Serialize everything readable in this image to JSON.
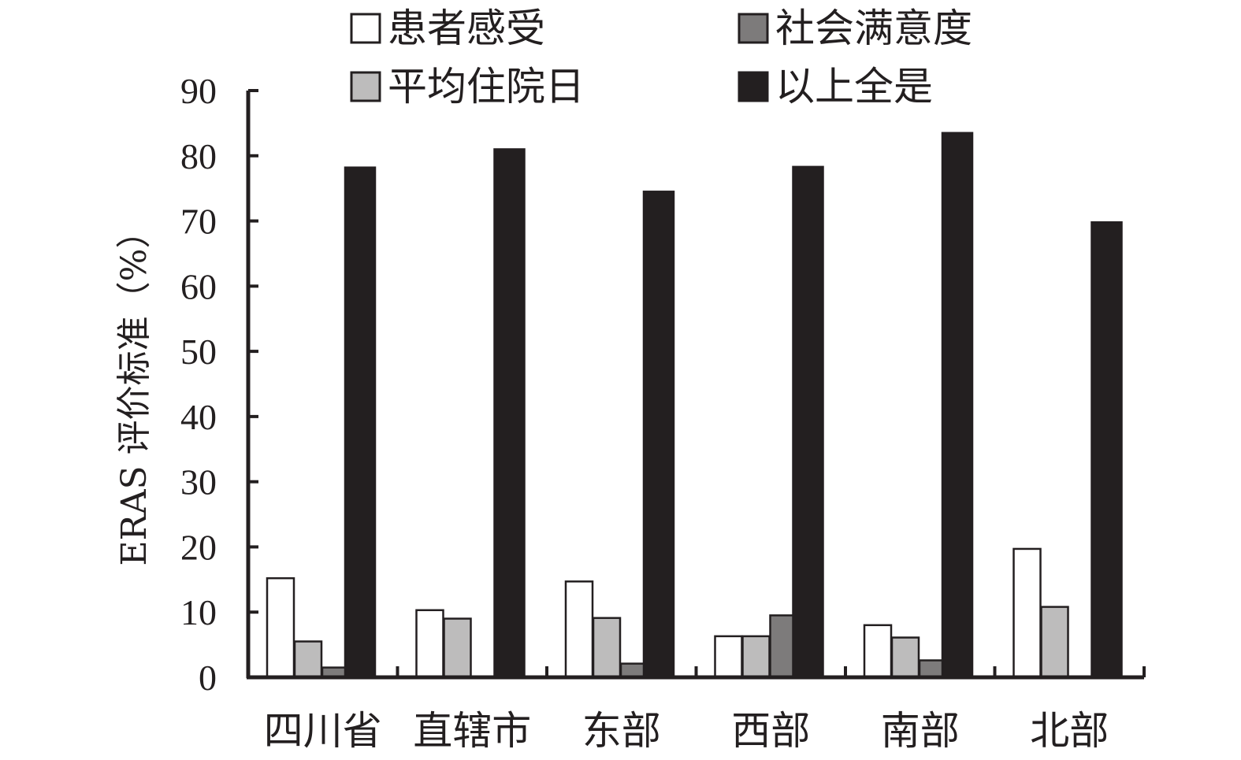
{
  "chart_data": {
    "type": "bar",
    "title": "",
    "xlabel": "",
    "ylabel": "ERAS 评价标准（%）",
    "ylim": [
      0,
      90
    ],
    "yticks": [
      0,
      10,
      20,
      30,
      40,
      50,
      60,
      70,
      80,
      90
    ],
    "grid": false,
    "legend_position": "top",
    "categories": [
      "四川省",
      "直辖市",
      "东部",
      "西部",
      "南部",
      "北部"
    ],
    "series": [
      {
        "name": "患者感受",
        "color": "#ffffff",
        "values": [
          15.2,
          10.3,
          14.7,
          6.3,
          8.0,
          19.7
        ]
      },
      {
        "name": "平均住院日",
        "color": "#bdbcbc",
        "values": [
          5.5,
          9.0,
          9.1,
          6.3,
          6.1,
          10.8
        ]
      },
      {
        "name": "社会满意度",
        "color": "#7d7b7b",
        "values": [
          1.5,
          0,
          2.1,
          9.5,
          2.6,
          0
        ]
      },
      {
        "name": "以上全是",
        "color": "#231f20",
        "values": [
          78.2,
          81.0,
          74.5,
          78.3,
          83.5,
          69.8
        ]
      }
    ]
  }
}
